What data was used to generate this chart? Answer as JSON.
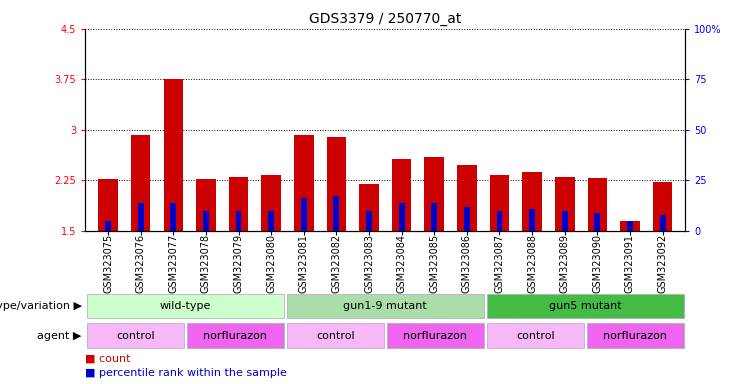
{
  "title": "GDS3379 / 250770_at",
  "samples": [
    "GSM323075",
    "GSM323076",
    "GSM323077",
    "GSM323078",
    "GSM323079",
    "GSM323080",
    "GSM323081",
    "GSM323082",
    "GSM323083",
    "GSM323084",
    "GSM323085",
    "GSM323086",
    "GSM323087",
    "GSM323088",
    "GSM323089",
    "GSM323090",
    "GSM323091",
    "GSM323092"
  ],
  "count_values": [
    2.27,
    2.93,
    3.75,
    2.27,
    2.3,
    2.33,
    2.92,
    2.9,
    2.2,
    2.57,
    2.6,
    2.47,
    2.33,
    2.37,
    2.3,
    2.28,
    1.65,
    2.22
  ],
  "percentile_values": [
    5,
    14,
    14,
    10,
    10,
    10,
    16,
    17,
    10,
    14,
    14,
    12,
    10,
    11,
    10,
    9,
    5,
    8
  ],
  "ylim_left": [
    1.5,
    4.5
  ],
  "ylim_right": [
    0,
    100
  ],
  "yticks_left": [
    1.5,
    2.25,
    3.0,
    3.75,
    4.5
  ],
  "yticks_right": [
    0,
    25,
    50,
    75,
    100
  ],
  "ytick_labels_left": [
    "1.5",
    "2.25",
    "3",
    "3.75",
    "4.5"
  ],
  "ytick_labels_right": [
    "0",
    "25",
    "50",
    "75",
    "100%"
  ],
  "bar_bottom": 1.5,
  "bar_width": 0.6,
  "count_color": "#cc0000",
  "percentile_color": "#0000cc",
  "background_color": "#ffffff",
  "genotype_groups": [
    {
      "label": "wild-type",
      "start": 0,
      "end": 5,
      "color": "#ccffcc"
    },
    {
      "label": "gun1-9 mutant",
      "start": 6,
      "end": 11,
      "color": "#aaddaa"
    },
    {
      "label": "gun5 mutant",
      "start": 12,
      "end": 17,
      "color": "#44bb44"
    }
  ],
  "agent_groups": [
    {
      "label": "control",
      "start": 0,
      "end": 2,
      "color": "#f8b8f8"
    },
    {
      "label": "norflurazon",
      "start": 3,
      "end": 5,
      "color": "#ee66ee"
    },
    {
      "label": "control",
      "start": 6,
      "end": 8,
      "color": "#f8b8f8"
    },
    {
      "label": "norflurazon",
      "start": 9,
      "end": 11,
      "color": "#ee66ee"
    },
    {
      "label": "control",
      "start": 12,
      "end": 14,
      "color": "#f8b8f8"
    },
    {
      "label": "norflurazon",
      "start": 15,
      "end": 17,
      "color": "#ee66ee"
    }
  ],
  "genotype_row_label": "genotype/variation",
  "agent_row_label": "agent",
  "legend_count": "count",
  "legend_percentile": "percentile rank within the sample",
  "title_fontsize": 10,
  "label_fontsize": 8,
  "tick_fontsize": 7,
  "annot_fontsize": 8
}
